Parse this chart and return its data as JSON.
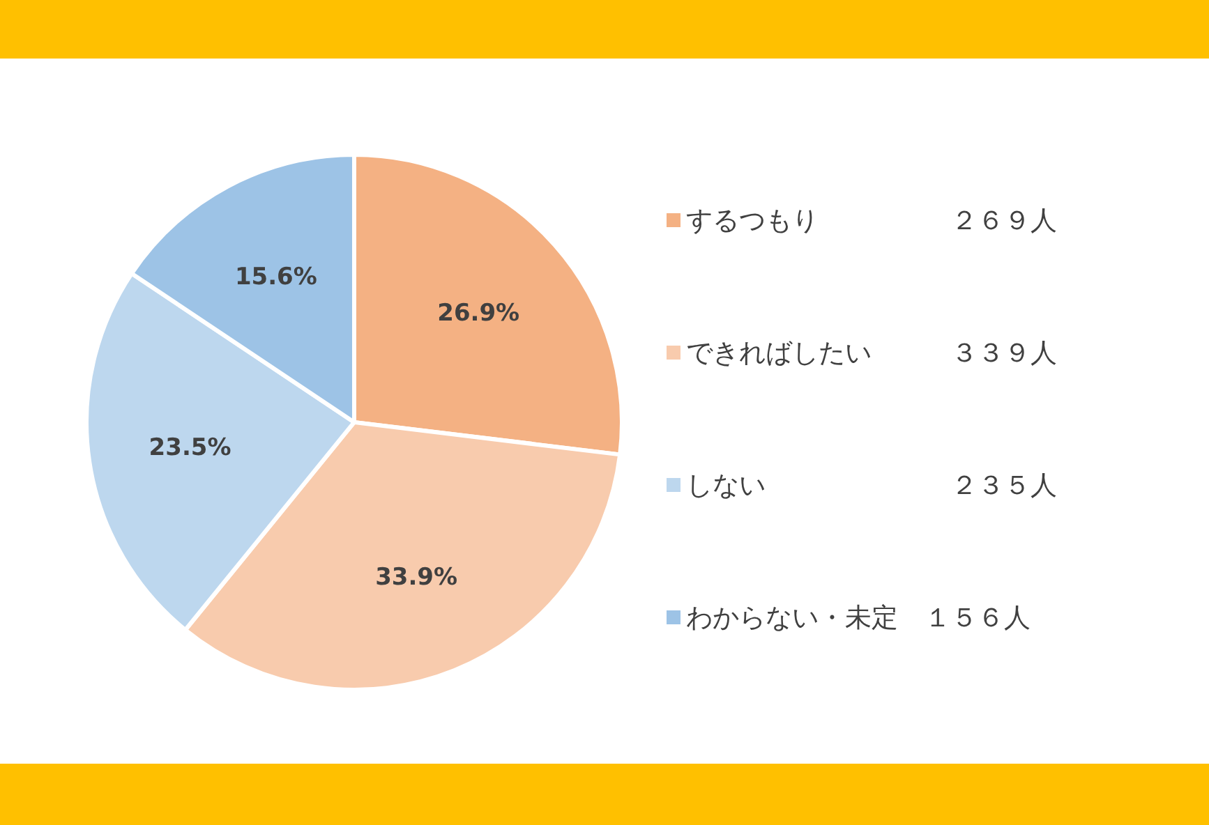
{
  "chart_data": {
    "type": "pie",
    "categories": [
      "するつもり　　　　　２６９人",
      "できればしたい　　　３３９人",
      "しない　　　　　　　２３５人",
      "わからない・未定　１５６人"
    ],
    "values": [
      26.9,
      33.9,
      23.5,
      15.6
    ],
    "value_labels": [
      "26.9%",
      "33.9%",
      "23.5%",
      "15.6%"
    ],
    "colors": [
      "#f4b183",
      "#f8cbad",
      "#bdd7ee",
      "#9dc3e6"
    ],
    "legend": "right"
  }
}
